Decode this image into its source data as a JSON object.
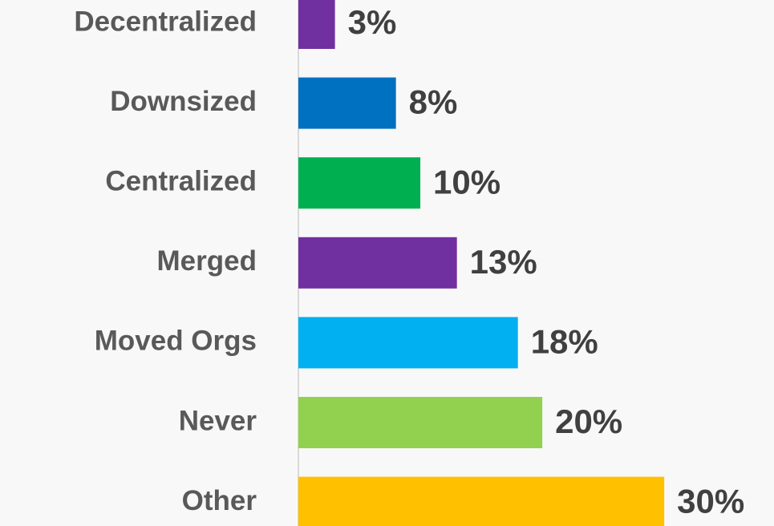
{
  "chart_data": {
    "type": "hbar",
    "categories": [
      "Decentralized",
      "Downsized",
      "Centralized",
      "Merged",
      "Moved Orgs",
      "Never",
      "Other"
    ],
    "values": [
      3,
      8,
      10,
      13,
      18,
      20,
      30
    ],
    "value_labels": [
      "3%",
      "8%",
      "10%",
      "13%",
      "18%",
      "20%",
      "30%"
    ],
    "colors": [
      "#7030a0",
      "#0070c0",
      "#00b050",
      "#7030a0",
      "#00b0f0",
      "#92d050",
      "#ffc000"
    ],
    "xlim": [
      0,
      39
    ]
  }
}
